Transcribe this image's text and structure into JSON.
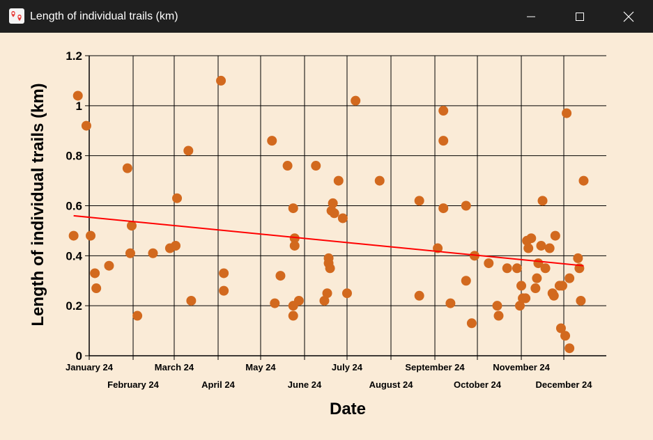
{
  "window": {
    "title": "Length of individual trails (km)",
    "icon": "map-pin-icon",
    "buttons": [
      "minimize-icon",
      "maximize-icon",
      "close-icon"
    ]
  },
  "colors": {
    "titlebar": "#1f1f1f",
    "background": "#faebd7",
    "points": "#d2691e",
    "trend": "#ff0000",
    "grid": "#000000"
  },
  "chart_data": {
    "type": "scatter",
    "xlabel": "Date",
    "ylabel": "Length of individual trails (km)",
    "ylim": [
      0,
      1.2
    ],
    "xlim": [
      "2024-01-01",
      "2024-12-31"
    ],
    "y_ticks": [
      0,
      0.2,
      0.4,
      0.6,
      0.8,
      1,
      1.2
    ],
    "y_tick_labels": [
      "0",
      "0.2",
      "0.4",
      "0.6",
      "0.8",
      "1",
      "1.2"
    ],
    "x_ticks": [
      "2024-01-01",
      "2024-02-01",
      "2024-03-01",
      "2024-04-01",
      "2024-05-01",
      "2024-06-01",
      "2024-07-01",
      "2024-08-01",
      "2024-09-01",
      "2024-10-01",
      "2024-11-01",
      "2024-12-01"
    ],
    "x_tick_labels": [
      "January 24",
      "February 24",
      "March 24",
      "April 24",
      "May 24",
      "June 24",
      "July 24",
      "August 24",
      "September 24",
      "October 24",
      "November 24",
      "December 24"
    ],
    "grid": true,
    "series": [
      {
        "points": [
          {
            "x": "2023-12-21",
            "y": 0.48
          },
          {
            "x": "2023-12-24",
            "y": 1.04
          },
          {
            "x": "2023-12-30",
            "y": 0.92
          },
          {
            "x": "2024-01-02",
            "y": 0.48
          },
          {
            "x": "2024-01-05",
            "y": 0.33
          },
          {
            "x": "2024-01-06",
            "y": 0.27
          },
          {
            "x": "2024-01-15",
            "y": 0.36
          },
          {
            "x": "2024-01-28",
            "y": 0.75
          },
          {
            "x": "2024-01-30",
            "y": 0.41
          },
          {
            "x": "2024-01-31",
            "y": 0.52
          },
          {
            "x": "2024-02-04",
            "y": 0.16
          },
          {
            "x": "2024-02-15",
            "y": 0.41
          },
          {
            "x": "2024-02-27",
            "y": 0.43
          },
          {
            "x": "2024-03-02",
            "y": 0.44
          },
          {
            "x": "2024-03-03",
            "y": 0.63
          },
          {
            "x": "2024-03-11",
            "y": 0.82
          },
          {
            "x": "2024-03-13",
            "y": 0.22
          },
          {
            "x": "2024-04-03",
            "y": 1.1
          },
          {
            "x": "2024-04-05",
            "y": 0.33
          },
          {
            "x": "2024-04-05",
            "y": 0.26
          },
          {
            "x": "2024-05-09",
            "y": 0.86
          },
          {
            "x": "2024-05-11",
            "y": 0.21
          },
          {
            "x": "2024-05-15",
            "y": 0.32
          },
          {
            "x": "2024-05-20",
            "y": 0.76
          },
          {
            "x": "2024-05-24",
            "y": 0.59
          },
          {
            "x": "2024-05-24",
            "y": 0.2
          },
          {
            "x": "2024-05-24",
            "y": 0.16
          },
          {
            "x": "2024-05-25",
            "y": 0.47
          },
          {
            "x": "2024-05-25",
            "y": 0.44
          },
          {
            "x": "2024-05-28",
            "y": 0.22
          },
          {
            "x": "2024-06-09",
            "y": 0.76
          },
          {
            "x": "2024-06-15",
            "y": 0.22
          },
          {
            "x": "2024-06-17",
            "y": 0.25
          },
          {
            "x": "2024-06-18",
            "y": 0.39
          },
          {
            "x": "2024-06-18",
            "y": 0.37
          },
          {
            "x": "2024-06-19",
            "y": 0.35
          },
          {
            "x": "2024-06-20",
            "y": 0.58
          },
          {
            "x": "2024-06-21",
            "y": 0.61
          },
          {
            "x": "2024-06-22",
            "y": 0.57
          },
          {
            "x": "2024-06-25",
            "y": 0.7
          },
          {
            "x": "2024-06-28",
            "y": 0.55
          },
          {
            "x": "2024-07-01",
            "y": 0.25
          },
          {
            "x": "2024-07-07",
            "y": 1.02
          },
          {
            "x": "2024-07-24",
            "y": 0.7
          },
          {
            "x": "2024-08-21",
            "y": 0.62
          },
          {
            "x": "2024-08-21",
            "y": 0.24
          },
          {
            "x": "2024-09-03",
            "y": 0.43
          },
          {
            "x": "2024-09-07",
            "y": 0.98
          },
          {
            "x": "2024-09-07",
            "y": 0.86
          },
          {
            "x": "2024-09-07",
            "y": 0.59
          },
          {
            "x": "2024-09-12",
            "y": 0.21
          },
          {
            "x": "2024-09-23",
            "y": 0.6
          },
          {
            "x": "2024-09-23",
            "y": 0.3
          },
          {
            "x": "2024-09-27",
            "y": 0.13
          },
          {
            "x": "2024-09-29",
            "y": 0.4
          },
          {
            "x": "2024-10-09",
            "y": 0.37
          },
          {
            "x": "2024-10-15",
            "y": 0.2
          },
          {
            "x": "2024-10-16",
            "y": 0.16
          },
          {
            "x": "2024-10-22",
            "y": 0.35
          },
          {
            "x": "2024-10-29",
            "y": 0.35
          },
          {
            "x": "2024-10-31",
            "y": 0.2
          },
          {
            "x": "2024-11-01",
            "y": 0.28
          },
          {
            "x": "2024-11-02",
            "y": 0.23
          },
          {
            "x": "2024-11-04",
            "y": 0.23
          },
          {
            "x": "2024-11-05",
            "y": 0.46
          },
          {
            "x": "2024-11-06",
            "y": 0.43
          },
          {
            "x": "2024-11-08",
            "y": 0.47
          },
          {
            "x": "2024-11-11",
            "y": 0.27
          },
          {
            "x": "2024-11-12",
            "y": 0.31
          },
          {
            "x": "2024-11-13",
            "y": 0.37
          },
          {
            "x": "2024-11-15",
            "y": 0.44
          },
          {
            "x": "2024-11-16",
            "y": 0.62
          },
          {
            "x": "2024-11-18",
            "y": 0.35
          },
          {
            "x": "2024-11-21",
            "y": 0.43
          },
          {
            "x": "2024-11-23",
            "y": 0.25
          },
          {
            "x": "2024-11-24",
            "y": 0.24
          },
          {
            "x": "2024-11-25",
            "y": 0.48
          },
          {
            "x": "2024-11-28",
            "y": 0.28
          },
          {
            "x": "2024-11-29",
            "y": 0.11
          },
          {
            "x": "2024-11-30",
            "y": 0.28
          },
          {
            "x": "2024-12-02",
            "y": 0.08
          },
          {
            "x": "2024-12-03",
            "y": 0.97
          },
          {
            "x": "2024-12-05",
            "y": 0.31
          },
          {
            "x": "2024-12-05",
            "y": 0.03
          },
          {
            "x": "2024-12-11",
            "y": 0.39
          },
          {
            "x": "2024-12-12",
            "y": 0.35
          },
          {
            "x": "2024-12-13",
            "y": 0.22
          },
          {
            "x": "2024-12-15",
            "y": 0.7
          }
        ]
      }
    ],
    "trendline": {
      "x": [
        "2023-12-21",
        "2024-12-15"
      ],
      "y": [
        0.56,
        0.36
      ]
    }
  }
}
